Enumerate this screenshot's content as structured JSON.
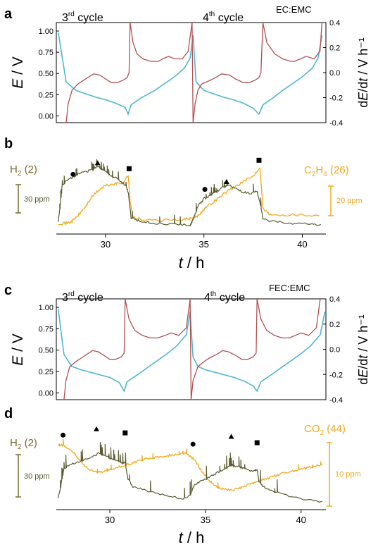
{
  "colors": {
    "potential": "#4fb6cf",
    "derivative": "#b0504e",
    "h2": "#5a5a30",
    "h2_label": "#7b6a2a",
    "c2h4": "#f2a81d",
    "co2": "#f2a81d",
    "axis": "#000000"
  },
  "chart_data": [
    {
      "panel": "a",
      "type": "line",
      "electrolyte": "EC:EMC",
      "annotations": {
        "cycle3_num": "3",
        "cycle3_sup": "rd",
        "cycle3_word": "cycle",
        "cycle4_num": "4",
        "cycle4_sup": "th",
        "cycle4_word": "cycle"
      },
      "xlim": [
        27.5,
        41.2
      ],
      "left_axis": {
        "label_E": "E",
        "label_unit": " / V",
        "ylim": [
          -0.08,
          1.1
        ],
        "ticks": [
          "0.00",
          "0.25",
          "0.50",
          "0.75",
          "1.00"
        ],
        "tick_values": [
          0,
          0.25,
          0.5,
          0.75,
          1.0
        ]
      },
      "right_axis": {
        "label": "dE/dt / V h⁻¹",
        "label_d": "d",
        "label_E": "E",
        "label_rest": "/d",
        "label_t": "t",
        "label_unit": " / V h⁻¹",
        "ylim": [
          -0.4,
          0.4
        ],
        "ticks": [
          "0.4",
          "0.2",
          "0.0",
          "-0.2",
          "-0.4"
        ],
        "tick_values": [
          0.4,
          0.2,
          0.0,
          -0.2,
          -0.4
        ]
      },
      "series": [
        {
          "key": "E",
          "x": [
            27.6,
            28.0,
            28.5,
            29.0,
            29.5,
            30.0,
            30.5,
            31.0,
            31.15,
            31.3,
            31.8,
            32.5,
            33.0,
            33.5,
            34.0,
            34.3,
            34.45,
            34.6,
            35.0,
            35.5,
            36.0,
            36.5,
            37.0,
            37.5,
            37.8,
            38.0,
            38.5,
            39.0,
            39.5,
            40.0,
            40.5,
            40.8,
            41.0
          ],
          "y": [
            0.98,
            0.4,
            0.3,
            0.26,
            0.22,
            0.19,
            0.15,
            0.1,
            0.02,
            0.13,
            0.21,
            0.3,
            0.38,
            0.46,
            0.56,
            0.68,
            0.95,
            0.4,
            0.3,
            0.26,
            0.22,
            0.19,
            0.15,
            0.09,
            0.02,
            0.13,
            0.21,
            0.3,
            0.38,
            0.46,
            0.56,
            0.68,
            0.95
          ]
        },
        {
          "key": "dEdt",
          "x": [
            28.0,
            28.1,
            28.3,
            28.6,
            28.8,
            29.1,
            29.4,
            29.7,
            30.0,
            30.3,
            30.6,
            30.9,
            31.1,
            31.2,
            31.25,
            31.4,
            31.6,
            31.9,
            32.3,
            32.7,
            32.9,
            33.2,
            33.5,
            33.9,
            34.2,
            34.4,
            34.45,
            34.55,
            34.7,
            34.9,
            35.2,
            35.6,
            35.9,
            36.3,
            36.6,
            37.0,
            37.3,
            37.6,
            37.8,
            37.9,
            38.0,
            38.2,
            38.6,
            39.0,
            39.4,
            39.6,
            39.9,
            40.2,
            40.6,
            40.9,
            41.0
          ],
          "y": [
            -0.4,
            -0.25,
            -0.14,
            -0.09,
            -0.07,
            -0.04,
            -0.01,
            -0.02,
            -0.05,
            -0.08,
            -0.08,
            -0.06,
            -0.04,
            0.0,
            0.4,
            0.24,
            0.15,
            0.11,
            0.09,
            0.09,
            0.11,
            0.13,
            0.11,
            0.11,
            0.17,
            0.4,
            -0.4,
            -0.25,
            -0.14,
            -0.09,
            -0.07,
            -0.04,
            -0.01,
            -0.02,
            -0.05,
            -0.08,
            -0.08,
            -0.06,
            -0.04,
            0.0,
            0.4,
            0.24,
            0.15,
            0.11,
            0.09,
            0.09,
            0.11,
            0.13,
            0.11,
            0.17,
            0.4
          ]
        }
      ]
    },
    {
      "panel": "b",
      "type": "line",
      "xlim": [
        27.5,
        41.2
      ],
      "x_ticks": [
        "30",
        "35",
        "40"
      ],
      "x_tick_values": [
        30,
        35,
        40
      ],
      "xlabel_t": "t",
      "xlabel_unit": " / h",
      "series": [
        {
          "key": "H2",
          "name": "H",
          "name_sub": "2",
          "name_rest": " (2)",
          "x": [
            27.6,
            27.8,
            28.2,
            28.5,
            28.8,
            29.2,
            29.6,
            29.9,
            30.2,
            30.6,
            31.0,
            31.15,
            31.3,
            31.8,
            32.5,
            33.5,
            34.3,
            34.45,
            34.7,
            35.0,
            35.3,
            35.6,
            36.0,
            36.3,
            36.6,
            37.0,
            37.4,
            37.7,
            37.85,
            38.0,
            38.5,
            39.5,
            40.5,
            41.0
          ],
          "y": [
            5,
            45,
            52,
            55,
            58,
            60,
            64,
            61,
            56,
            51,
            45,
            38,
            10,
            6,
            4,
            3,
            2,
            8,
            22,
            30,
            34,
            37,
            43,
            44,
            41,
            37,
            35,
            38,
            26,
            8,
            6,
            4,
            3,
            2
          ]
        },
        {
          "key": "C2H4",
          "name": "C",
          "name_sub": "2",
          "name_mid": "H",
          "name_sub2": "4",
          "name_rest": " (26)",
          "x": [
            27.6,
            28.0,
            28.3,
            28.6,
            29.0,
            29.3,
            29.7,
            30.0,
            30.5,
            30.9,
            31.15,
            31.25,
            31.4,
            32.0,
            33.0,
            34.0,
            34.4,
            34.7,
            35.0,
            35.5,
            36.0,
            36.5,
            37.0,
            37.5,
            37.85,
            38.0,
            38.3,
            39.0,
            40.0,
            41.0
          ],
          "y": [
            4,
            4,
            6,
            12,
            22,
            32,
            40,
            44,
            46,
            47,
            55,
            28,
            10,
            7,
            7,
            8,
            9,
            12,
            19,
            27,
            35,
            42,
            48,
            54,
            64,
            20,
            14,
            13,
            13,
            12
          ]
        }
      ],
      "markers": [
        {
          "symbol": "circle",
          "x": 28.35,
          "y": 56
        },
        {
          "symbol": "triangle",
          "x": 29.6,
          "y": 68
        },
        {
          "symbol": "square",
          "x": 31.2,
          "y": 62
        },
        {
          "symbol": "circle",
          "x": 35.05,
          "y": 40
        },
        {
          "symbol": "triangle",
          "x": 36.15,
          "y": 48
        },
        {
          "symbol": "square",
          "x": 37.8,
          "y": 71
        }
      ],
      "scale_bars": [
        {
          "label": "30 ppm",
          "side": "left"
        },
        {
          "label": "20 ppm",
          "side": "right"
        }
      ]
    },
    {
      "panel": "c",
      "type": "line",
      "electrolyte": "FEC:EMC",
      "annotations": {
        "cycle3_num": "3",
        "cycle3_sup": "rd",
        "cycle3_word": "cycle",
        "cycle4_num": "4",
        "cycle4_sup": "th",
        "cycle4_word": "cycle"
      },
      "xlim": [
        27.2,
        41.3
      ],
      "left_axis": {
        "label_E": "E",
        "label_unit": " / V",
        "ylim": [
          -0.08,
          1.1
        ],
        "ticks": [
          "0.00",
          "0.25",
          "0.50",
          "0.75",
          "1.00"
        ],
        "tick_values": [
          0,
          0.25,
          0.5,
          0.75,
          1.0
        ]
      },
      "right_axis": {
        "label": "dE/dt / V h⁻¹",
        "label_d": "d",
        "label_E": "E",
        "label_rest": "/d",
        "label_t": "t",
        "label_unit": " / V h⁻¹",
        "ylim": [
          -0.4,
          0.4
        ],
        "ticks": [
          "0.4",
          "0.2",
          "0.0",
          "-0.2",
          "-0.4"
        ],
        "tick_values": [
          0.4,
          0.2,
          0.0,
          -0.2,
          -0.4
        ]
      },
      "series": [
        {
          "key": "E",
          "x": [
            27.3,
            27.6,
            28.0,
            28.5,
            29.0,
            29.5,
            30.0,
            30.5,
            30.75,
            30.9,
            31.5,
            32.0,
            32.5,
            33.0,
            33.5,
            34.0,
            34.2,
            34.35,
            34.6,
            35.0,
            35.5,
            36.0,
            36.5,
            37.0,
            37.5,
            37.7,
            37.9,
            38.5,
            39.0,
            39.5,
            40.0,
            40.5,
            41.0,
            41.25
          ],
          "y": [
            0.98,
            0.45,
            0.31,
            0.27,
            0.24,
            0.21,
            0.18,
            0.12,
            0.02,
            0.13,
            0.22,
            0.3,
            0.38,
            0.46,
            0.55,
            0.68,
            0.95,
            0.42,
            0.31,
            0.27,
            0.24,
            0.21,
            0.18,
            0.14,
            0.08,
            0.02,
            0.13,
            0.22,
            0.3,
            0.38,
            0.46,
            0.55,
            0.68,
            0.95
          ]
        },
        {
          "key": "dEdt",
          "x": [
            27.6,
            27.7,
            27.9,
            28.2,
            28.5,
            28.8,
            29.1,
            29.4,
            29.7,
            30.0,
            30.3,
            30.6,
            30.75,
            30.8,
            31.0,
            31.3,
            31.7,
            32.1,
            32.5,
            32.9,
            33.2,
            33.6,
            34.0,
            34.2,
            34.25,
            34.35,
            34.6,
            34.9,
            35.2,
            35.6,
            35.9,
            36.2,
            36.6,
            36.9,
            37.2,
            37.5,
            37.65,
            37.7,
            37.9,
            38.2,
            38.6,
            39.0,
            39.4,
            39.7,
            40.0,
            40.4,
            40.8,
            41.0
          ],
          "y": [
            -0.4,
            -0.25,
            -0.14,
            -0.1,
            -0.07,
            -0.04,
            -0.01,
            -0.02,
            -0.05,
            -0.08,
            -0.08,
            -0.06,
            -0.03,
            0.4,
            0.24,
            0.15,
            0.11,
            0.09,
            0.09,
            0.11,
            0.13,
            0.11,
            0.17,
            0.4,
            -0.4,
            -0.25,
            -0.14,
            -0.1,
            -0.07,
            -0.04,
            -0.01,
            -0.02,
            -0.05,
            -0.08,
            -0.08,
            -0.06,
            -0.03,
            0.4,
            0.24,
            0.15,
            0.11,
            0.09,
            0.09,
            0.11,
            0.13,
            0.11,
            0.17,
            0.4
          ]
        }
      ]
    },
    {
      "panel": "d",
      "type": "line",
      "xlim": [
        27.2,
        41.3
      ],
      "x_ticks": [
        "30",
        "35",
        "40"
      ],
      "x_tick_values": [
        30,
        35,
        40
      ],
      "xlabel_t": "t",
      "xlabel_unit": " / h",
      "series": [
        {
          "key": "H2",
          "name": "H",
          "name_sub": "2",
          "name_rest": " (2)",
          "x": [
            27.3,
            27.6,
            28.0,
            28.5,
            29.0,
            29.4,
            29.8,
            30.2,
            30.6,
            30.8,
            30.95,
            31.2,
            32.0,
            33.0,
            33.8,
            34.2,
            34.4,
            34.8,
            35.2,
            35.6,
            36.0,
            36.4,
            36.8,
            37.2,
            37.5,
            37.7,
            37.8,
            38.0,
            38.5,
            39.5,
            40.5,
            41.2
          ],
          "y": [
            8,
            48,
            54,
            58,
            62,
            68,
            64,
            60,
            56,
            55,
            34,
            24,
            18,
            12,
            8,
            12,
            26,
            32,
            36,
            42,
            48,
            52,
            50,
            46,
            44,
            47,
            30,
            24,
            18,
            10,
            6,
            4
          ]
        },
        {
          "key": "CO2",
          "name": "CO",
          "name_sub": "2",
          "name_rest": " (44)",
          "x": [
            27.3,
            27.6,
            28.0,
            28.4,
            28.8,
            29.2,
            29.6,
            30.0,
            30.5,
            31.0,
            31.5,
            32.0,
            32.5,
            33.0,
            33.5,
            34.0,
            34.4,
            34.8,
            35.2,
            35.6,
            36.0,
            36.4,
            36.8,
            37.2,
            37.6,
            38.0,
            38.5,
            39.0,
            39.5,
            40.0,
            40.5,
            41.2
          ],
          "y": [
            80,
            78,
            72,
            60,
            48,
            44,
            43,
            46,
            50,
            54,
            58,
            61,
            63,
            65,
            67,
            68,
            60,
            45,
            32,
            24,
            20,
            19,
            22,
            26,
            30,
            33,
            37,
            41,
            44,
            47,
            50,
            54
          ]
        }
      ],
      "markers": [
        {
          "symbol": "circle",
          "x": 27.55,
          "y": 92
        },
        {
          "symbol": "triangle",
          "x": 29.3,
          "y": 100
        },
        {
          "symbol": "square",
          "x": 30.8,
          "y": 95
        },
        {
          "symbol": "circle",
          "x": 34.35,
          "y": 80
        },
        {
          "symbol": "triangle",
          "x": 36.35,
          "y": 90
        },
        {
          "symbol": "square",
          "x": 37.7,
          "y": 82
        }
      ],
      "scale_bars": [
        {
          "label": "30 ppm",
          "side": "left"
        },
        {
          "label": "10 ppm",
          "side": "right"
        }
      ]
    }
  ]
}
